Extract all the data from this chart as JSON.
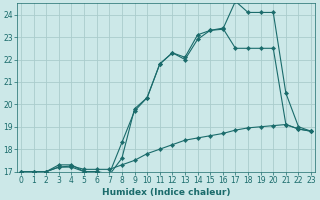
{
  "xlabel": "Humidex (Indice chaleur)",
  "background_color": "#cce8e8",
  "grid_color": "#aacccc",
  "line_color": "#1a6b6b",
  "xlim": [
    0,
    23
  ],
  "ylim": [
    17,
    24.5
  ],
  "xticks": [
    0,
    1,
    2,
    3,
    4,
    5,
    6,
    7,
    8,
    9,
    10,
    11,
    12,
    13,
    14,
    15,
    16,
    17,
    18,
    19,
    20,
    21,
    22,
    23
  ],
  "yticks": [
    17,
    18,
    19,
    20,
    21,
    22,
    23,
    24
  ],
  "line1_x": [
    0,
    1,
    2,
    3,
    4,
    5,
    6,
    7,
    8,
    9,
    10,
    11,
    12,
    13,
    14,
    15,
    16,
    17,
    18,
    19,
    20,
    21,
    22,
    23
  ],
  "line1_y": [
    17,
    17,
    17,
    17.2,
    17.25,
    17.1,
    17.1,
    17.1,
    17.3,
    17.5,
    17.8,
    18.0,
    18.2,
    18.4,
    18.5,
    18.6,
    18.7,
    18.85,
    18.95,
    19.0,
    19.05,
    19.1,
    18.9,
    18.8
  ],
  "line2_x": [
    0,
    1,
    2,
    3,
    4,
    5,
    6,
    7,
    8,
    9,
    10,
    11,
    12,
    13,
    14,
    15,
    16,
    17,
    18,
    19,
    20,
    21,
    22,
    23
  ],
  "line2_y": [
    17,
    17,
    17,
    17.3,
    17.3,
    17.0,
    17.0,
    16.9,
    18.3,
    19.7,
    20.3,
    21.8,
    22.3,
    22.0,
    22.9,
    23.3,
    23.4,
    22.5,
    22.5,
    22.5,
    22.5,
    19.1,
    18.9,
    18.8
  ],
  "line3_x": [
    0,
    1,
    2,
    3,
    4,
    5,
    6,
    7,
    8,
    9,
    10,
    11,
    12,
    13,
    14,
    15,
    16,
    17,
    18,
    19,
    20,
    21,
    22,
    23
  ],
  "line3_y": [
    17,
    17,
    17,
    17.2,
    17.2,
    17.0,
    17.0,
    16.85,
    17.6,
    19.8,
    20.3,
    21.8,
    22.3,
    22.1,
    23.1,
    23.3,
    23.35,
    24.6,
    24.1,
    24.1,
    24.1,
    20.5,
    19.0,
    18.8
  ]
}
